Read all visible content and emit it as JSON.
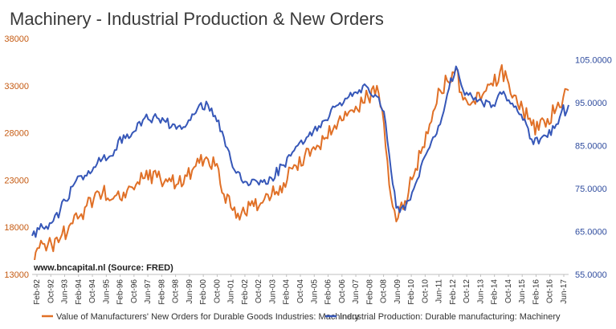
{
  "chart_data": {
    "type": "line",
    "title": "Machinery - Industrial Production & New Orders",
    "source_note": "www.bncapital.nl (Source: FRED)",
    "x_range": [
      "1992-02",
      "2017-07"
    ],
    "xtick_labels": [
      "Feb-92",
      "Oct-92",
      "Jun-93",
      "Feb-94",
      "Oct-94",
      "Jun-95",
      "Feb-96",
      "Oct-96",
      "Jun-97",
      "Feb-98",
      "Oct-98",
      "Jun-99",
      "Feb-00",
      "Oct-00",
      "Jun-01",
      "Feb-02",
      "Oct-02",
      "Jun-03",
      "Feb-04",
      "Oct-04",
      "Jun-05",
      "Feb-06",
      "Oct-06",
      "Jun-07",
      "Feb-08",
      "Oct-08",
      "Jun-09",
      "Feb-10",
      "Oct-10",
      "Jun-11",
      "Feb-12",
      "Oct-12",
      "Jun-13",
      "Feb-14",
      "Oct-14",
      "Jun-15",
      "Feb-16",
      "Oct-16",
      "Jun-17"
    ],
    "left_axis": {
      "ylim": [
        13000,
        38000
      ],
      "ticks": [
        "13000",
        "18000",
        "23000",
        "28000",
        "33000",
        "38000"
      ],
      "color": "#c55a11"
    },
    "right_axis": {
      "ylim": [
        55,
        110
      ],
      "ticks": [
        "55.0000",
        "65.0000",
        "75.0000",
        "85.0000",
        "95.0000",
        "105.0000"
      ],
      "color": "#2f4c9e"
    },
    "grid": false,
    "legend_position": "bottom",
    "series": [
      {
        "name": "Value of Manufacturers' New Orders for Durable Goods Industries: Machinery",
        "axis": "left",
        "color": "#e07027",
        "points": [
          [
            "1992-02",
            14200
          ],
          [
            "1992-06",
            15800
          ],
          [
            "1993-01",
            16200
          ],
          [
            "1993-06",
            16800
          ],
          [
            "1994-01",
            18400
          ],
          [
            "1994-06",
            19400
          ],
          [
            "1995-01",
            21000
          ],
          [
            "1995-06",
            21600
          ],
          [
            "1996-01",
            21300
          ],
          [
            "1996-06",
            21700
          ],
          [
            "1997-01",
            22500
          ],
          [
            "1997-06",
            23200
          ],
          [
            "1998-01",
            23300
          ],
          [
            "1998-06",
            23100
          ],
          [
            "1999-01",
            22600
          ],
          [
            "1999-06",
            23400
          ],
          [
            "2000-01",
            24800
          ],
          [
            "2000-06",
            25200
          ],
          [
            "2000-10",
            24500
          ],
          [
            "2001-03",
            21500
          ],
          [
            "2001-08",
            19800
          ],
          [
            "2002-01",
            19500
          ],
          [
            "2002-06",
            20300
          ],
          [
            "2003-01",
            20600
          ],
          [
            "2003-06",
            21300
          ],
          [
            "2004-01",
            22700
          ],
          [
            "2004-06",
            24200
          ],
          [
            "2005-01",
            25600
          ],
          [
            "2005-06",
            26500
          ],
          [
            "2006-01",
            27500
          ],
          [
            "2006-06",
            28800
          ],
          [
            "2007-01",
            29800
          ],
          [
            "2007-06",
            30800
          ],
          [
            "2008-01",
            31800
          ],
          [
            "2008-06",
            33000
          ],
          [
            "2008-10",
            29000
          ],
          [
            "2009-01",
            22500
          ],
          [
            "2009-05",
            18600
          ],
          [
            "2009-10",
            20800
          ],
          [
            "2010-03",
            23500
          ],
          [
            "2010-08",
            26500
          ],
          [
            "2011-01",
            29200
          ],
          [
            "2011-06",
            32500
          ],
          [
            "2011-10",
            33500
          ],
          [
            "2012-03",
            34800
          ],
          [
            "2012-07",
            31500
          ],
          [
            "2012-12",
            31200
          ],
          [
            "2013-06",
            32000
          ],
          [
            "2013-12",
            33000
          ],
          [
            "2014-04",
            34500
          ],
          [
            "2014-08",
            33800
          ],
          [
            "2014-12",
            32000
          ],
          [
            "2015-05",
            30500
          ],
          [
            "2015-10",
            28800
          ],
          [
            "2016-02",
            28300
          ],
          [
            "2016-07",
            29500
          ],
          [
            "2016-12",
            30600
          ],
          [
            "2017-04",
            31800
          ],
          [
            "2017-07",
            32500
          ]
        ]
      },
      {
        "name": "Industrial Production: Durable manufacturing: Machinery",
        "axis": "right",
        "color": "#3657b8",
        "points": [
          [
            "1992-02",
            64.0
          ],
          [
            "1992-06",
            65.5
          ],
          [
            "1993-01",
            67.0
          ],
          [
            "1993-06",
            70.0
          ],
          [
            "1994-01",
            75.5
          ],
          [
            "1994-06",
            78.0
          ],
          [
            "1995-01",
            80.0
          ],
          [
            "1995-06",
            82.0
          ],
          [
            "1996-01",
            84.0
          ],
          [
            "1996-06",
            87.5
          ],
          [
            "1997-01",
            88.5
          ],
          [
            "1997-06",
            91.5
          ],
          [
            "1998-01",
            91.5
          ],
          [
            "1998-06",
            90.5
          ],
          [
            "1999-01",
            89.5
          ],
          [
            "1999-06",
            90.0
          ],
          [
            "2000-01",
            94.5
          ],
          [
            "2000-06",
            94.5
          ],
          [
            "2000-10",
            92.0
          ],
          [
            "2001-03",
            87.0
          ],
          [
            "2001-08",
            80.0
          ],
          [
            "2002-01",
            77.0
          ],
          [
            "2002-06",
            76.0
          ],
          [
            "2003-01",
            76.5
          ],
          [
            "2003-06",
            77.5
          ],
          [
            "2004-01",
            80.5
          ],
          [
            "2004-06",
            83.5
          ],
          [
            "2005-01",
            86.0
          ],
          [
            "2005-06",
            88.5
          ],
          [
            "2006-01",
            91.0
          ],
          [
            "2006-06",
            94.0
          ],
          [
            "2007-01",
            96.0
          ],
          [
            "2007-06",
            97.5
          ],
          [
            "2008-01",
            98.5
          ],
          [
            "2008-06",
            96.5
          ],
          [
            "2008-10",
            93.0
          ],
          [
            "2009-01",
            83.0
          ],
          [
            "2009-05",
            70.5
          ],
          [
            "2009-10",
            70.0
          ],
          [
            "2010-03",
            75.0
          ],
          [
            "2010-08",
            81.5
          ],
          [
            "2011-01",
            86.0
          ],
          [
            "2011-06",
            90.0
          ],
          [
            "2011-10",
            97.0
          ],
          [
            "2012-03",
            103.5
          ],
          [
            "2012-07",
            98.0
          ],
          [
            "2012-12",
            96.5
          ],
          [
            "2013-06",
            95.0
          ],
          [
            "2013-12",
            94.5
          ],
          [
            "2014-04",
            97.5
          ],
          [
            "2014-08",
            95.5
          ],
          [
            "2014-12",
            94.0
          ],
          [
            "2015-05",
            91.0
          ],
          [
            "2015-10",
            86.5
          ],
          [
            "2016-02",
            85.5
          ],
          [
            "2016-07",
            87.0
          ],
          [
            "2016-12",
            90.0
          ],
          [
            "2017-04",
            94.5
          ],
          [
            "2017-05",
            92.0
          ],
          [
            "2017-07",
            94.5
          ]
        ]
      }
    ]
  }
}
